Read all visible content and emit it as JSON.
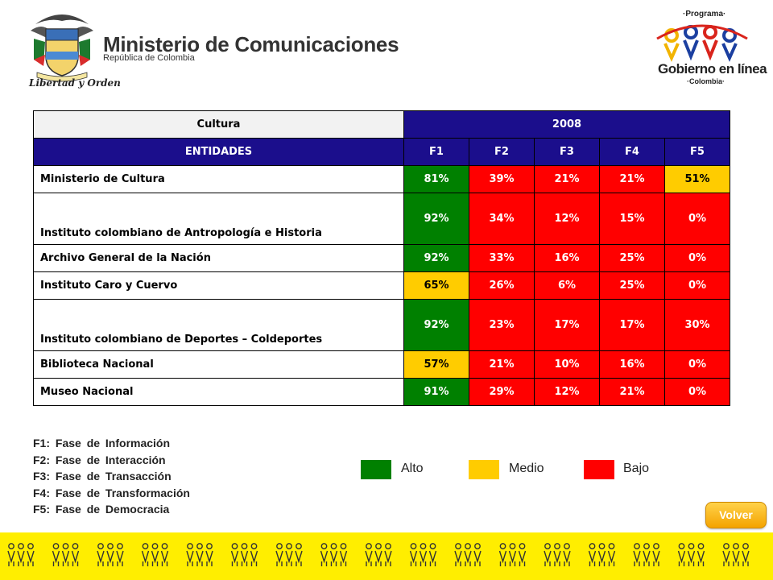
{
  "header": {
    "ministry_title": "Ministerio de Comunicaciones",
    "ministry_subtitle": "República de Colombia",
    "motto": "Libertad y Orden",
    "program_label": "·Programa·",
    "program_title": "Gobierno en línea",
    "program_country": "·Colombia·"
  },
  "table": {
    "sector_label": "Cultura",
    "year": "2008",
    "entities_header": "ENTIDADES",
    "phase_headers": [
      "F1",
      "F2",
      "F3",
      "F4",
      "F5"
    ],
    "rows": [
      {
        "name": "Ministerio de Cultura",
        "values": [
          "81%",
          "39%",
          "21%",
          "21%",
          "51%"
        ],
        "levels": [
          "alto",
          "bajo",
          "bajo",
          "bajo",
          "medio"
        ]
      },
      {
        "name": "Instituto colombiano de Antropología e Historia",
        "values": [
          "92%",
          "34%",
          "12%",
          "15%",
          "0%"
        ],
        "levels": [
          "alto",
          "bajo",
          "bajo",
          "bajo",
          "bajo"
        ]
      },
      {
        "name": "Archivo General de la Nación",
        "values": [
          "92%",
          "33%",
          "16%",
          "25%",
          "0%"
        ],
        "levels": [
          "alto",
          "bajo",
          "bajo",
          "bajo",
          "bajo"
        ]
      },
      {
        "name": "Instituto Caro y Cuervo",
        "values": [
          "65%",
          "26%",
          "6%",
          "25%",
          "0%"
        ],
        "levels": [
          "medio",
          "bajo",
          "bajo",
          "bajo",
          "bajo"
        ]
      },
      {
        "name": "Instituto colombiano de Deportes – Coldeportes",
        "values": [
          "92%",
          "23%",
          "17%",
          "17%",
          "30%"
        ],
        "levels": [
          "alto",
          "bajo",
          "bajo",
          "bajo",
          "bajo"
        ]
      },
      {
        "name": "Biblioteca Nacional",
        "values": [
          "57%",
          "21%",
          "10%",
          "16%",
          "0%"
        ],
        "levels": [
          "medio",
          "bajo",
          "bajo",
          "bajo",
          "bajo"
        ]
      },
      {
        "name": "Museo Nacional",
        "values": [
          "91%",
          "29%",
          "12%",
          "21%",
          "0%"
        ],
        "levels": [
          "alto",
          "bajo",
          "bajo",
          "bajo",
          "bajo"
        ]
      }
    ]
  },
  "phases": [
    "F1: Fase de Información",
    "F2: Fase de Interacción",
    "F3: Fase de Transacción",
    "F4: Fase de Transformación",
    "F5: Fase de Democracia"
  ],
  "legend": [
    {
      "label": "Alto",
      "color": "#008000"
    },
    {
      "label": "Medio",
      "color": "#ffcc00"
    },
    {
      "label": "Bajo",
      "color": "#ff0000"
    }
  ],
  "colors": {
    "header_blue": "#1b0e8c",
    "alto": "#008000",
    "medio": "#ffcc00",
    "bajo": "#ff0000",
    "footer_yellow": "#ffee00",
    "button_orange": "#f4a300"
  },
  "volver_label": "Volver"
}
